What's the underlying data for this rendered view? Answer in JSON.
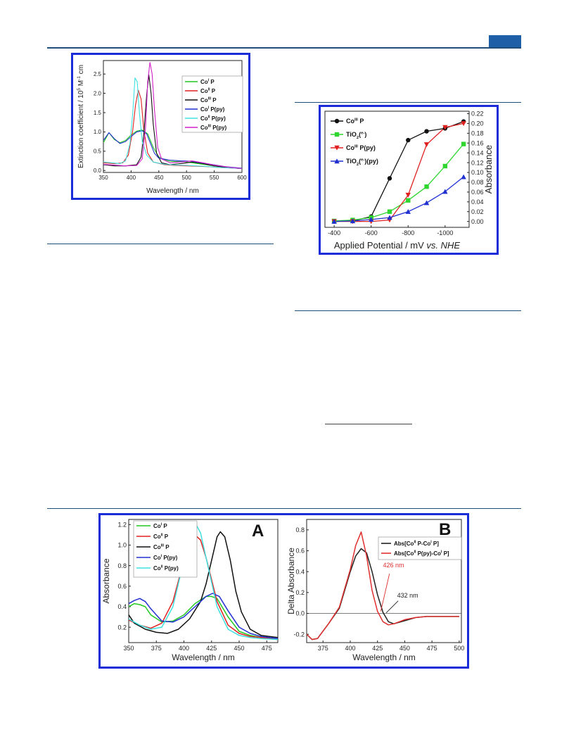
{
  "page": {
    "accent": "#1a2bd8",
    "rule_color": "#1f4e79",
    "header_tab_color": "#1f5fa8"
  },
  "chart_data": [
    {
      "id": "uv_extinction",
      "type": "line",
      "xlabel": "Wavelength / nm",
      "ylabel": "Extinction coefficient / 10^5 M^-1 cm^-1",
      "xlim": [
        350,
        600
      ],
      "ylim": [
        -0.05,
        2.85
      ],
      "xticks": [
        "350",
        "400",
        "450",
        "500",
        "550",
        "600"
      ],
      "yticks": [
        "0.0",
        "0.5",
        "1.0",
        "1.5",
        "2.0",
        "2.5"
      ],
      "legend_position": "right",
      "series": [
        {
          "name": "Co^I P",
          "color": "#22c922",
          "x": [
            350,
            360,
            370,
            380,
            390,
            400,
            410,
            420,
            430,
            440,
            450,
            460,
            470,
            480,
            490,
            500,
            520,
            540,
            560,
            580,
            600
          ],
          "y": [
            0.72,
            0.98,
            0.8,
            0.72,
            0.78,
            0.92,
            1.02,
            1.05,
            0.95,
            0.6,
            0.35,
            0.28,
            0.24,
            0.23,
            0.24,
            0.22,
            0.18,
            0.14,
            0.1,
            0.08,
            0.06
          ]
        },
        {
          "name": "Co^II P",
          "color": "#e02020",
          "x": [
            350,
            370,
            385,
            395,
            403,
            408,
            413,
            418,
            423,
            430,
            440,
            460,
            480,
            500,
            520,
            540,
            560,
            600
          ],
          "y": [
            0.2,
            0.18,
            0.2,
            0.4,
            1.05,
            1.7,
            2.08,
            1.85,
            1.05,
            0.45,
            0.22,
            0.15,
            0.13,
            0.12,
            0.11,
            0.1,
            0.08,
            0.05
          ]
        },
        {
          "name": "Co^III P",
          "color": "#111111",
          "x": [
            350,
            370,
            390,
            410,
            418,
            423,
            428,
            432,
            436,
            440,
            446,
            455,
            470,
            490,
            510,
            530,
            550,
            580,
            600
          ],
          "y": [
            0.15,
            0.12,
            0.12,
            0.15,
            0.35,
            0.95,
            1.95,
            2.48,
            2.0,
            1.2,
            0.45,
            0.2,
            0.15,
            0.18,
            0.22,
            0.18,
            0.12,
            0.07,
            0.05
          ]
        },
        {
          "name": "Co^I P(py)",
          "color": "#2230d0",
          "x": [
            350,
            360,
            370,
            380,
            390,
            400,
            410,
            420,
            428,
            435,
            442,
            450,
            470,
            490,
            510,
            540,
            570,
            600
          ],
          "y": [
            0.78,
            0.98,
            0.82,
            0.7,
            0.75,
            0.88,
            1.0,
            1.03,
            0.95,
            0.7,
            0.45,
            0.32,
            0.27,
            0.25,
            0.24,
            0.17,
            0.1,
            0.06
          ]
        },
        {
          "name": "Co^II P(py)",
          "color": "#3fe0e0",
          "x": [
            350,
            365,
            380,
            390,
            398,
            403,
            407,
            411,
            415,
            420,
            428,
            440,
            460,
            480,
            500,
            530,
            560,
            600
          ],
          "y": [
            0.22,
            0.2,
            0.18,
            0.25,
            0.7,
            1.5,
            2.4,
            2.3,
            1.5,
            0.75,
            0.4,
            0.22,
            0.16,
            0.14,
            0.13,
            0.11,
            0.08,
            0.05
          ]
        },
        {
          "name": "Co^III P(py)",
          "color": "#d020c8",
          "x": [
            350,
            370,
            390,
            410,
            420,
            426,
            430,
            434,
            438,
            442,
            448,
            455,
            470,
            490,
            510,
            530,
            550,
            580,
            600
          ],
          "y": [
            0.16,
            0.14,
            0.12,
            0.13,
            0.3,
            1.1,
            2.3,
            2.8,
            2.5,
            1.6,
            0.6,
            0.3,
            0.2,
            0.22,
            0.25,
            0.2,
            0.14,
            0.08,
            0.05
          ]
        }
      ]
    },
    {
      "id": "spectroelectrochem",
      "type": "line",
      "xlabel": "Applied Potential / mV vs. NHE",
      "ylabel": "Absorbance",
      "xlim": [
        -350,
        -1130
      ],
      "ylim": [
        -0.012,
        0.225
      ],
      "xticks": [
        "-400",
        "-600",
        "-800",
        "-1000"
      ],
      "yticks": [
        "0.00",
        "0.02",
        "0.04",
        "0.06",
        "0.08",
        "0.10",
        "0.12",
        "0.14",
        "0.16",
        "0.18",
        "0.20",
        "0.22"
      ],
      "legend_position": "top-left",
      "series": [
        {
          "name": "Co^III P",
          "color": "#111111",
          "marker": "circle",
          "x": [
            -400,
            -500,
            -600,
            -700,
            -800,
            -900,
            -1000,
            -1100
          ],
          "y": [
            0.0,
            0.001,
            0.01,
            0.088,
            0.166,
            0.184,
            0.19,
            0.204
          ]
        },
        {
          "name": "TiO2(e-)",
          "color": "#2fd62f",
          "marker": "square",
          "x": [
            -400,
            -500,
            -600,
            -700,
            -800,
            -900,
            -1000,
            -1100
          ],
          "y": [
            0.001,
            0.003,
            0.008,
            0.02,
            0.043,
            0.071,
            0.113,
            0.158
          ]
        },
        {
          "name": "Co^III P(py)",
          "color": "#e02020",
          "marker": "triangle-down",
          "x": [
            -400,
            -500,
            -600,
            -700,
            -800,
            -900,
            -1000,
            -1100
          ],
          "y": [
            0.0,
            0.0,
            0.0,
            0.003,
            0.054,
            0.157,
            0.192,
            0.2
          ]
        },
        {
          "name": "TiO2(e-)(py)",
          "color": "#1f2fd0",
          "marker": "triangle-up",
          "x": [
            -400,
            -500,
            -600,
            -700,
            -800,
            -900,
            -1000,
            -1100
          ],
          "y": [
            0.0,
            0.001,
            0.004,
            0.008,
            0.02,
            0.038,
            0.061,
            0.091
          ]
        }
      ]
    },
    {
      "id": "panel_A",
      "panel_label": "A",
      "type": "line",
      "xlabel": "Wavelength / nm",
      "ylabel": "Absorbance",
      "xlim": [
        350,
        485
      ],
      "ylim": [
        0.05,
        1.25
      ],
      "xticks": [
        "350",
        "375",
        "400",
        "425",
        "450",
        "475"
      ],
      "yticks": [
        "0.2",
        "0.4",
        "0.6",
        "0.8",
        "1.0",
        "1.2"
      ],
      "legend_position": "top-left",
      "series": [
        {
          "name": "Co^I P",
          "color": "#22c922",
          "x": [
            350,
            355,
            360,
            365,
            370,
            380,
            390,
            400,
            410,
            420,
            425,
            430,
            440,
            450,
            460,
            470,
            485
          ],
          "y": [
            0.4,
            0.43,
            0.42,
            0.4,
            0.32,
            0.25,
            0.26,
            0.32,
            0.43,
            0.5,
            0.5,
            0.48,
            0.3,
            0.16,
            0.12,
            0.1,
            0.08
          ]
        },
        {
          "name": "Co^II P",
          "color": "#e02020",
          "x": [
            350,
            360,
            370,
            380,
            390,
            400,
            405,
            410,
            415,
            420,
            430,
            440,
            450,
            460,
            470,
            485
          ],
          "y": [
            0.27,
            0.22,
            0.19,
            0.24,
            0.45,
            0.85,
            1.02,
            1.1,
            1.05,
            0.88,
            0.45,
            0.22,
            0.14,
            0.11,
            0.1,
            0.08
          ]
        },
        {
          "name": "Co^III P",
          "color": "#111111",
          "x": [
            350,
            355,
            365,
            375,
            385,
            395,
            405,
            415,
            420,
            425,
            430,
            433,
            437,
            442,
            447,
            452,
            460,
            470,
            485
          ],
          "y": [
            0.32,
            0.24,
            0.18,
            0.15,
            0.14,
            0.18,
            0.28,
            0.45,
            0.62,
            0.85,
            1.08,
            1.13,
            1.08,
            0.85,
            0.55,
            0.35,
            0.18,
            0.12,
            0.1
          ]
        },
        {
          "name": "Co^I P(py)",
          "color": "#2230d0",
          "x": [
            350,
            355,
            360,
            365,
            370,
            380,
            390,
            400,
            410,
            420,
            426,
            432,
            440,
            450,
            460,
            470,
            485
          ],
          "y": [
            0.43,
            0.46,
            0.48,
            0.45,
            0.38,
            0.26,
            0.25,
            0.3,
            0.4,
            0.5,
            0.53,
            0.5,
            0.36,
            0.2,
            0.14,
            0.11,
            0.09
          ]
        },
        {
          "name": "Co^II P(py)",
          "color": "#3fe0e0",
          "x": [
            350,
            360,
            370,
            380,
            390,
            400,
            405,
            410,
            415,
            420,
            430,
            440,
            450,
            460,
            470,
            485
          ],
          "y": [
            0.28,
            0.22,
            0.18,
            0.2,
            0.4,
            0.85,
            1.1,
            1.22,
            1.12,
            0.88,
            0.4,
            0.18,
            0.12,
            0.1,
            0.09,
            0.08
          ]
        }
      ]
    },
    {
      "id": "panel_B",
      "panel_label": "B",
      "type": "line",
      "xlabel": "Wavelength / nm",
      "ylabel": "Delta Absorbance",
      "xlim": [
        360,
        502
      ],
      "ylim": [
        -0.28,
        0.9
      ],
      "xticks": [
        "375",
        "400",
        "425",
        "450",
        "475",
        "500"
      ],
      "yticks": [
        "-0.2",
        "0.0",
        "0.2",
        "0.4",
        "0.6",
        "0.8"
      ],
      "legend_position": "top-right",
      "annotations": [
        "426 nm",
        "432 nm"
      ],
      "series": [
        {
          "name": "Abs[Co^II P-Co^I P]",
          "color": "#222222",
          "x": [
            360,
            365,
            370,
            380,
            390,
            400,
            405,
            410,
            415,
            420,
            425,
            430,
            435,
            440,
            450,
            460,
            470,
            480,
            490,
            500
          ],
          "y": [
            -0.2,
            -0.25,
            -0.24,
            -0.1,
            0.05,
            0.4,
            0.55,
            0.62,
            0.58,
            0.4,
            0.18,
            0.01,
            -0.08,
            -0.1,
            -0.07,
            -0.04,
            -0.03,
            -0.03,
            -0.03,
            -0.03
          ]
        },
        {
          "name": "Abs[Co^II P(py)-Co^I P]",
          "color": "#e03030",
          "x": [
            360,
            365,
            370,
            380,
            390,
            400,
            405,
            410,
            415,
            420,
            425,
            430,
            435,
            440,
            450,
            460,
            470,
            480,
            490,
            500
          ],
          "y": [
            -0.2,
            -0.25,
            -0.24,
            -0.1,
            0.06,
            0.42,
            0.65,
            0.78,
            0.55,
            0.22,
            0.02,
            -0.08,
            -0.11,
            -0.1,
            -0.06,
            -0.04,
            -0.03,
            -0.03,
            -0.03,
            -0.03
          ]
        }
      ]
    }
  ]
}
